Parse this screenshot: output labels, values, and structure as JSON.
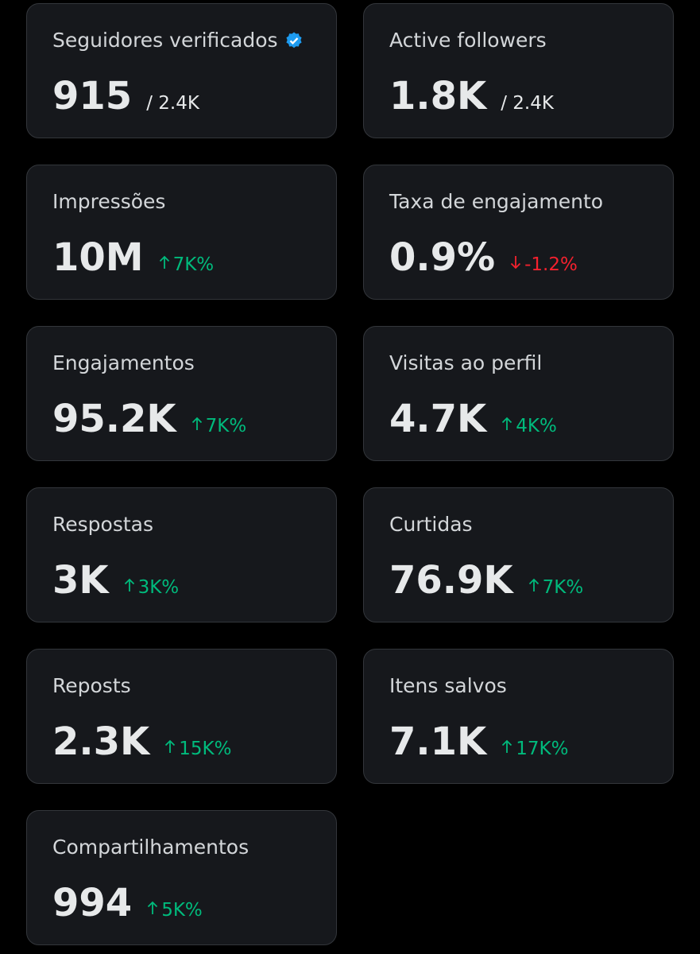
{
  "cards": [
    {
      "label": "Seguidores verificados",
      "value": "915",
      "total": "/ 2.4K",
      "verified": true
    },
    {
      "label": "Active followers",
      "value": "1.8K",
      "total": "/ 2.4K"
    },
    {
      "label": "Impressões",
      "value": "10M",
      "change": "7K%",
      "direction": "up"
    },
    {
      "label": "Taxa de engajamento",
      "value": "0.9%",
      "change": "-1.2%",
      "direction": "down"
    },
    {
      "label": "Engajamentos",
      "value": "95.2K",
      "change": "7K%",
      "direction": "up"
    },
    {
      "label": "Visitas ao perfil",
      "value": "4.7K",
      "change": "4K%",
      "direction": "up"
    },
    {
      "label": "Respostas",
      "value": "3K",
      "change": "3K%",
      "direction": "up"
    },
    {
      "label": "Curtidas",
      "value": "76.9K",
      "change": "7K%",
      "direction": "up"
    },
    {
      "label": "Reposts",
      "value": "2.3K",
      "change": "15K%",
      "direction": "up"
    },
    {
      "label": "Itens salvos",
      "value": "7.1K",
      "change": "17K%",
      "direction": "up"
    },
    {
      "label": "Compartilhamentos",
      "value": "994",
      "change": "5K%",
      "direction": "up"
    }
  ]
}
